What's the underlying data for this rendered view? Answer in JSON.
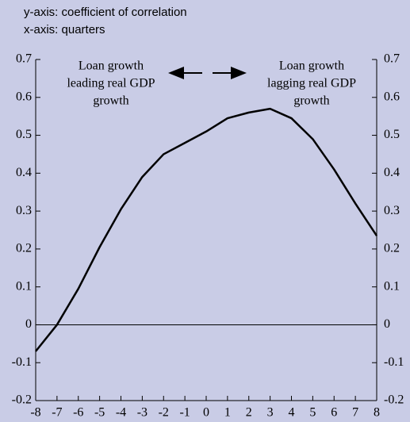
{
  "chart_data": {
    "type": "line",
    "notes": [
      "y-axis: coefficient of correlation",
      "x-axis: quarters"
    ],
    "annotations": [
      {
        "lines": [
          "Loan growth",
          "leading real GDP",
          "growth"
        ]
      },
      {
        "lines": [
          "Loan growth",
          "lagging real GDP",
          "growth"
        ]
      }
    ],
    "x": [
      -8,
      -7,
      -6,
      -5,
      -4,
      -3,
      -2,
      -1,
      0,
      1,
      2,
      3,
      4,
      5,
      6,
      7,
      8
    ],
    "series": [
      {
        "name": "coefficient of correlation",
        "color": "#000000",
        "values": [
          -0.07,
          0.0,
          0.095,
          0.205,
          0.305,
          0.39,
          0.45,
          0.48,
          0.51,
          0.545,
          0.56,
          0.57,
          0.545,
          0.49,
          0.41,
          0.32,
          0.235
        ]
      }
    ],
    "xlim": [
      -8,
      8
    ],
    "xticks": [
      -8,
      -7,
      -6,
      -5,
      -4,
      -3,
      -2,
      -1,
      0,
      1,
      2,
      3,
      4,
      5,
      6,
      7,
      8
    ],
    "ylim": [
      -0.2,
      0.7
    ],
    "yticks": [
      -0.2,
      -0.1,
      0,
      0.1,
      0.2,
      0.3,
      0.4,
      0.5,
      0.6,
      0.7
    ]
  }
}
